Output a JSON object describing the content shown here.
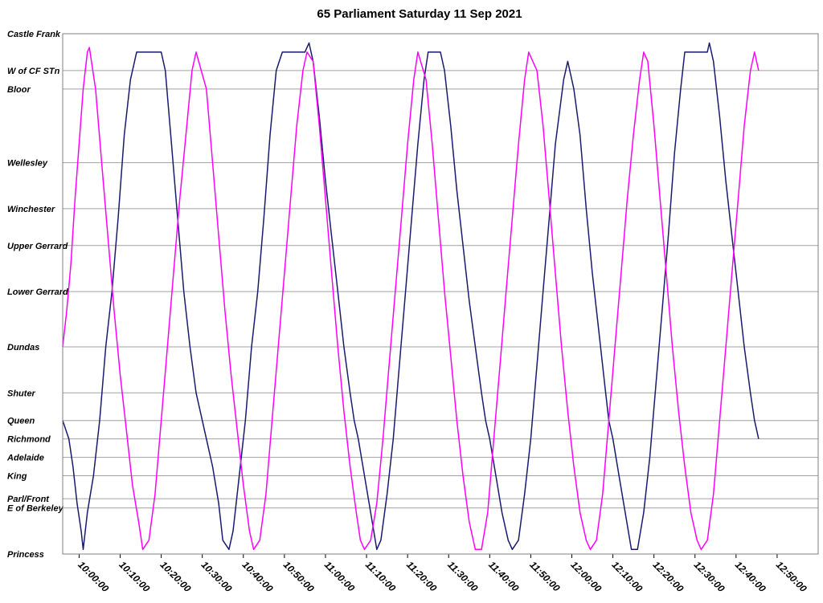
{
  "chart_data": {
    "type": "line",
    "title": "65 Parliament Saturday 11 Sep 2021",
    "xlabel": "",
    "ylabel": "",
    "x_range": [
      "09:56:00",
      "13:00:00"
    ],
    "x_ticks": [
      "10:00:00",
      "10:10:00",
      "10:20:00",
      "10:30:00",
      "10:40:00",
      "10:50:00",
      "11:00:00",
      "11:10:00",
      "11:20:00",
      "11:30:00",
      "11:40:00",
      "11:50:00",
      "12:00:00",
      "12:10:00",
      "12:20:00",
      "12:30:00",
      "12:40:00",
      "12:50:00"
    ],
    "stops": [
      {
        "name": "Castle Frank",
        "pos": 0
      },
      {
        "name": "W of CF STn",
        "pos": 4
      },
      {
        "name": "Bloor",
        "pos": 6
      },
      {
        "name": "Wellesley",
        "pos": 14
      },
      {
        "name": "Winchester",
        "pos": 19
      },
      {
        "name": "Upper Gerrard",
        "pos": 23
      },
      {
        "name": "Lower Gerrard",
        "pos": 28
      },
      {
        "name": "Dundas",
        "pos": 34
      },
      {
        "name": "Shuter",
        "pos": 39
      },
      {
        "name": "Queen",
        "pos": 42
      },
      {
        "name": "Richmond",
        "pos": 44
      },
      {
        "name": "Adelaide",
        "pos": 46
      },
      {
        "name": "King",
        "pos": 48
      },
      {
        "name": "Parl/Front",
        "pos": 50.5
      },
      {
        "name": "E of Berkeley",
        "pos": 51.5
      },
      {
        "name": "Princess",
        "pos": 56.5
      }
    ],
    "grid": true,
    "legend": "none",
    "series": [
      {
        "color": "#1a1a6e",
        "points": [
          [
            "09:56:00",
            42
          ],
          [
            "09:57:30",
            44
          ],
          [
            "09:58:30",
            47
          ],
          [
            "09:59:30",
            51
          ],
          [
            "10:00:30",
            54
          ],
          [
            "10:01:00",
            56
          ],
          [
            "10:02:00",
            52
          ],
          [
            "10:03:30",
            48
          ],
          [
            "10:05:00",
            42
          ],
          [
            "10:06:30",
            34
          ],
          [
            "10:08:00",
            28
          ],
          [
            "10:09:30",
            20
          ],
          [
            "10:11:00",
            11
          ],
          [
            "10:12:30",
            5
          ],
          [
            "10:14:00",
            2
          ],
          [
            "10:20:00",
            2
          ],
          [
            "10:21:00",
            4
          ],
          [
            "10:22:30",
            12
          ],
          [
            "10:24:00",
            20
          ],
          [
            "10:25:30",
            28
          ],
          [
            "10:27:00",
            34
          ],
          [
            "10:28:30",
            39
          ],
          [
            "10:30:00",
            42
          ],
          [
            "10:31:00",
            44
          ],
          [
            "10:32:30",
            47
          ],
          [
            "10:34:00",
            51
          ],
          [
            "10:35:00",
            55
          ],
          [
            "10:36:30",
            56
          ],
          [
            "10:37:30",
            54
          ],
          [
            "10:39:00",
            48
          ],
          [
            "10:40:30",
            42
          ],
          [
            "10:42:00",
            34
          ],
          [
            "10:43:30",
            28
          ],
          [
            "10:45:00",
            20
          ],
          [
            "10:46:30",
            11
          ],
          [
            "10:48:00",
            4
          ],
          [
            "10:49:30",
            2
          ],
          [
            "10:55:00",
            2
          ],
          [
            "10:56:00",
            1
          ],
          [
            "10:57:00",
            3
          ],
          [
            "10:58:30",
            9
          ],
          [
            "11:00:00",
            16
          ],
          [
            "11:01:30",
            22
          ],
          [
            "11:03:00",
            28
          ],
          [
            "11:04:30",
            34
          ],
          [
            "11:06:00",
            39
          ],
          [
            "11:07:00",
            42
          ],
          [
            "11:08:00",
            44
          ],
          [
            "11:09:30",
            48
          ],
          [
            "11:11:00",
            52
          ],
          [
            "11:12:30",
            56
          ],
          [
            "11:13:30",
            55
          ],
          [
            "11:15:00",
            50
          ],
          [
            "11:16:30",
            44
          ],
          [
            "11:18:00",
            36
          ],
          [
            "11:19:30",
            28
          ],
          [
            "11:21:00",
            20
          ],
          [
            "11:22:30",
            12
          ],
          [
            "11:24:00",
            5
          ],
          [
            "11:25:00",
            2
          ],
          [
            "11:28:00",
            2
          ],
          [
            "11:29:00",
            4
          ],
          [
            "11:30:30",
            10
          ],
          [
            "11:32:00",
            17
          ],
          [
            "11:33:30",
            23
          ],
          [
            "11:35:00",
            29
          ],
          [
            "11:36:30",
            34
          ],
          [
            "11:38:00",
            39
          ],
          [
            "11:39:00",
            42
          ],
          [
            "11:40:00",
            44
          ],
          [
            "11:41:30",
            48
          ],
          [
            "11:43:00",
            52
          ],
          [
            "11:44:30",
            55
          ],
          [
            "11:45:30",
            56
          ],
          [
            "11:47:00",
            55
          ],
          [
            "11:48:30",
            50
          ],
          [
            "11:50:00",
            44
          ],
          [
            "11:51:30",
            36
          ],
          [
            "11:53:00",
            28
          ],
          [
            "11:54:30",
            20
          ],
          [
            "11:56:00",
            12
          ],
          [
            "11:58:00",
            5
          ],
          [
            "11:59:00",
            3
          ],
          [
            "12:00:30",
            6
          ],
          [
            "12:02:00",
            11
          ],
          [
            "12:03:30",
            19
          ],
          [
            "12:05:00",
            26
          ],
          [
            "12:06:30",
            32
          ],
          [
            "12:08:00",
            38
          ],
          [
            "12:09:00",
            42
          ],
          [
            "12:10:00",
            44
          ],
          [
            "12:11:30",
            48
          ],
          [
            "12:13:00",
            52
          ],
          [
            "12:14:30",
            56
          ],
          [
            "12:16:00",
            56
          ],
          [
            "12:17:30",
            52
          ],
          [
            "12:19:00",
            46
          ],
          [
            "12:20:30",
            38
          ],
          [
            "12:22:00",
            30
          ],
          [
            "12:23:30",
            22
          ],
          [
            "12:25:00",
            13
          ],
          [
            "12:26:30",
            6
          ],
          [
            "12:27:30",
            2
          ],
          [
            "12:33:00",
            2
          ],
          [
            "12:33:30",
            1
          ],
          [
            "12:34:30",
            3
          ],
          [
            "12:36:00",
            9
          ],
          [
            "12:37:30",
            16
          ],
          [
            "12:39:00",
            22
          ],
          [
            "12:40:30",
            28
          ],
          [
            "12:42:00",
            34
          ],
          [
            "12:43:30",
            39
          ],
          [
            "12:44:30",
            42
          ],
          [
            "12:45:30",
            44
          ]
        ]
      },
      {
        "color": "#ff00ff",
        "points": [
          [
            "09:56:00",
            34
          ],
          [
            "09:57:00",
            30
          ],
          [
            "09:58:00",
            25
          ],
          [
            "09:59:00",
            18
          ],
          [
            "10:00:00",
            12
          ],
          [
            "10:01:00",
            6
          ],
          [
            "10:02:00",
            2
          ],
          [
            "10:02:30",
            1.5
          ],
          [
            "10:04:00",
            6
          ],
          [
            "10:05:30",
            14
          ],
          [
            "10:07:00",
            22
          ],
          [
            "10:08:30",
            30
          ],
          [
            "10:10:00",
            37
          ],
          [
            "10:11:30",
            43
          ],
          [
            "10:13:00",
            49
          ],
          [
            "10:14:30",
            53
          ],
          [
            "10:15:30",
            56
          ],
          [
            "10:17:00",
            55
          ],
          [
            "10:18:30",
            50
          ],
          [
            "10:20:00",
            42
          ],
          [
            "10:21:30",
            34
          ],
          [
            "10:23:00",
            26
          ],
          [
            "10:24:30",
            18
          ],
          [
            "10:26:00",
            11
          ],
          [
            "10:27:30",
            4
          ],
          [
            "10:28:30",
            2
          ],
          [
            "10:31:00",
            6
          ],
          [
            "10:32:30",
            14
          ],
          [
            "10:34:00",
            22
          ],
          [
            "10:35:30",
            30
          ],
          [
            "10:37:00",
            37
          ],
          [
            "10:38:30",
            43
          ],
          [
            "10:40:00",
            49
          ],
          [
            "10:41:30",
            54
          ],
          [
            "10:42:30",
            56
          ],
          [
            "10:44:00",
            55
          ],
          [
            "10:45:30",
            50
          ],
          [
            "10:47:00",
            42
          ],
          [
            "10:48:30",
            34
          ],
          [
            "10:50:00",
            26
          ],
          [
            "10:51:30",
            18
          ],
          [
            "10:53:00",
            10
          ],
          [
            "10:54:30",
            4
          ],
          [
            "10:55:30",
            2
          ],
          [
            "10:57:00",
            3
          ],
          [
            "10:58:30",
            10
          ],
          [
            "11:00:00",
            18
          ],
          [
            "11:01:30",
            26
          ],
          [
            "11:03:00",
            34
          ],
          [
            "11:04:30",
            41
          ],
          [
            "11:06:00",
            47
          ],
          [
            "11:07:30",
            52
          ],
          [
            "11:08:30",
            55
          ],
          [
            "11:09:30",
            56
          ],
          [
            "11:11:00",
            55
          ],
          [
            "11:12:30",
            51
          ],
          [
            "11:14:00",
            44
          ],
          [
            "11:15:30",
            36
          ],
          [
            "11:17:00",
            28
          ],
          [
            "11:18:30",
            20
          ],
          [
            "11:20:00",
            12
          ],
          [
            "11:21:30",
            5
          ],
          [
            "11:22:30",
            2
          ],
          [
            "11:24:30",
            5
          ],
          [
            "11:26:00",
            12
          ],
          [
            "11:27:30",
            20
          ],
          [
            "11:29:00",
            28
          ],
          [
            "11:30:30",
            35
          ],
          [
            "11:32:00",
            42
          ],
          [
            "11:33:30",
            48
          ],
          [
            "11:35:00",
            53
          ],
          [
            "11:36:30",
            56
          ],
          [
            "11:38:00",
            56
          ],
          [
            "11:39:30",
            52
          ],
          [
            "11:41:00",
            44
          ],
          [
            "11:42:30",
            36
          ],
          [
            "11:44:00",
            28
          ],
          [
            "11:45:30",
            20
          ],
          [
            "11:47:00",
            12
          ],
          [
            "11:48:30",
            5
          ],
          [
            "11:49:30",
            2
          ],
          [
            "11:51:30",
            4
          ],
          [
            "11:53:00",
            10
          ],
          [
            "11:54:30",
            18
          ],
          [
            "11:56:00",
            26
          ],
          [
            "11:57:30",
            34
          ],
          [
            "11:59:00",
            41
          ],
          [
            "12:00:30",
            47
          ],
          [
            "12:02:00",
            52
          ],
          [
            "12:03:30",
            55
          ],
          [
            "12:04:30",
            56
          ],
          [
            "12:06:00",
            55
          ],
          [
            "12:07:30",
            50
          ],
          [
            "12:09:00",
            42
          ],
          [
            "12:10:30",
            34
          ],
          [
            "12:12:00",
            26
          ],
          [
            "12:13:30",
            18
          ],
          [
            "12:15:00",
            11
          ],
          [
            "12:16:30",
            5
          ],
          [
            "12:17:30",
            2
          ],
          [
            "12:18:30",
            3
          ],
          [
            "12:20:00",
            10
          ],
          [
            "12:21:30",
            18
          ],
          [
            "12:23:00",
            26
          ],
          [
            "12:24:30",
            34
          ],
          [
            "12:26:00",
            41
          ],
          [
            "12:27:30",
            47
          ],
          [
            "12:29:00",
            52
          ],
          [
            "12:30:30",
            55
          ],
          [
            "12:31:30",
            56
          ],
          [
            "12:33:00",
            55
          ],
          [
            "12:34:30",
            50
          ],
          [
            "12:36:00",
            42
          ],
          [
            "12:37:30",
            34
          ],
          [
            "12:39:00",
            26
          ],
          [
            "12:40:30",
            18
          ],
          [
            "12:42:00",
            10
          ],
          [
            "12:43:30",
            4
          ],
          [
            "12:44:30",
            2
          ],
          [
            "12:45:30",
            4
          ]
        ]
      }
    ]
  }
}
